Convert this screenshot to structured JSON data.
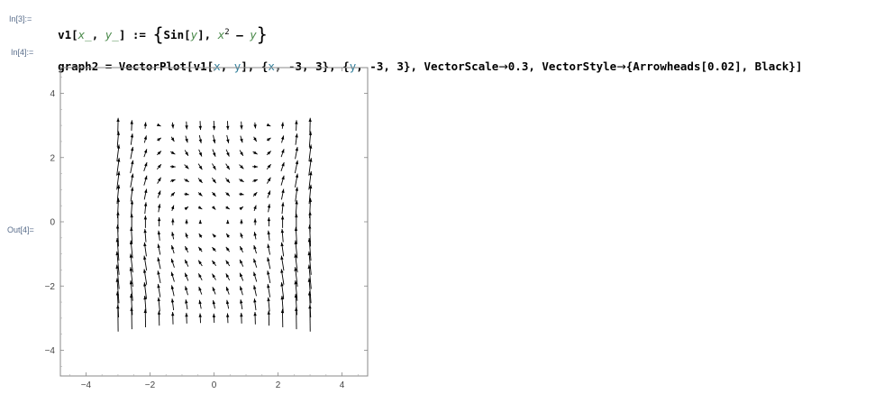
{
  "cells": {
    "in3": {
      "label": "In[3]:=",
      "lhs": "v1[",
      "argx": "x_",
      "comma": ", ",
      "argy": "y_",
      "assign": "] := ",
      "open_brace": "{",
      "sin": "Sin[",
      "sin_arg": "y",
      "sin_close": "], ",
      "x2": "x",
      "exp": "2",
      "minus": " – ",
      "y2": "y",
      "close_brace": "}"
    },
    "in4": {
      "label": "In[4]:=",
      "part1": "graph2 = VectorPlot[v1[",
      "px": "x",
      "pcomma": ", ",
      "py": "y",
      "part2": "], {",
      "ix": "x",
      "part3": ", -3, 3}, {",
      "iy": "y",
      "part4": ", -3, 3}, VectorScale",
      "arrow1": "→",
      "part5": "0.3, VectorStyle",
      "arrow2": "→",
      "part6": "{Arrowheads[0.02], Black}]"
    },
    "out4": {
      "label": "Out[4]="
    }
  },
  "chart_data": {
    "type": "vector",
    "function": {
      "vx": "Sin[y]",
      "vy": "x^2 - y"
    },
    "x_range": [
      -3,
      3
    ],
    "y_range": [
      -3,
      3
    ],
    "xlim": [
      -4.8,
      4.8
    ],
    "ylim": [
      -4.8,
      4.8
    ],
    "x_ticks": [
      -4,
      -2,
      0,
      2,
      4
    ],
    "y_ticks": [
      -4,
      -2,
      0,
      2,
      4
    ],
    "x_tick_labels": [
      "−4",
      "−2",
      "0",
      "2",
      "4"
    ],
    "y_tick_labels": [
      "−4",
      "−2",
      "0",
      "2",
      "4"
    ],
    "grid": false,
    "color": "#000000",
    "samples": 15,
    "vector_scale": 0.3
  }
}
